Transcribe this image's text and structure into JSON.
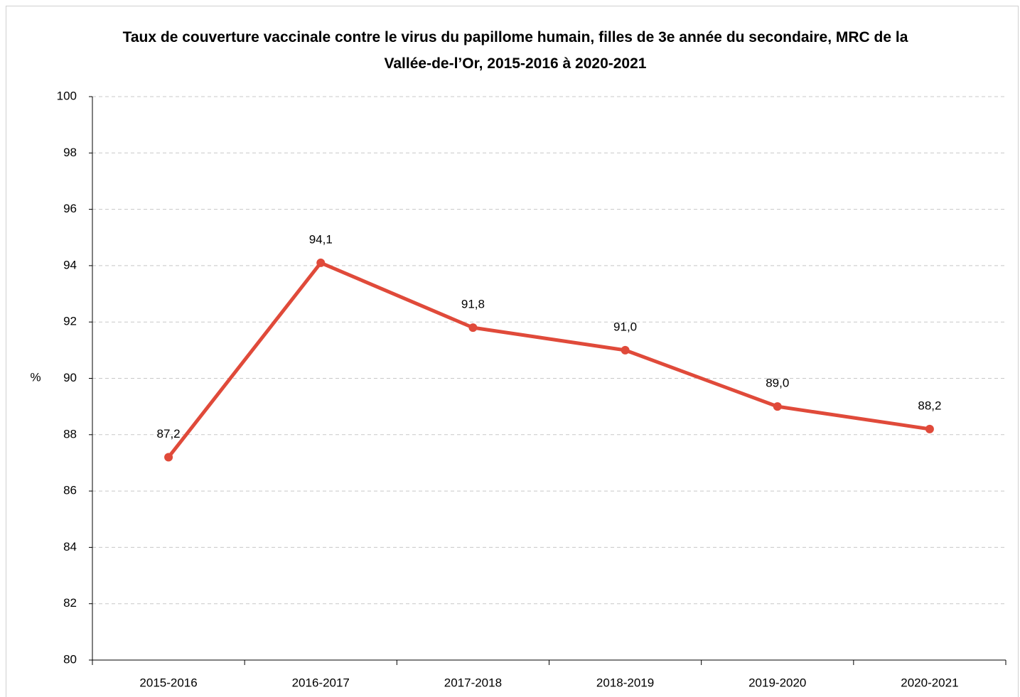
{
  "chart_data": {
    "type": "line",
    "title": "Taux de couverture  vaccinale contre le virus du papillome humain, filles de 3e année du secondaire,  MRC de la Vallée-de-l’Or, 2015-2016  à 2020-2021",
    "y_label": "%",
    "categories": [
      "2015-2016",
      "2016-2017",
      "2017-2018",
      "2018-2019",
      "2019-2020",
      "2020-2021"
    ],
    "series": [
      {
        "name": "Taux de couverture",
        "color": "#e04a3a",
        "values": [
          87.2,
          94.1,
          91.8,
          91.0,
          89.0,
          88.2
        ],
        "value_labels": [
          "87,2",
          "94,1",
          "91,8",
          "91,0",
          "89,0",
          "88,2"
        ]
      }
    ],
    "ylim": [
      80,
      100
    ],
    "yticks": [
      80,
      82,
      84,
      86,
      88,
      90,
      92,
      94,
      96,
      98,
      100
    ],
    "grid": true
  }
}
